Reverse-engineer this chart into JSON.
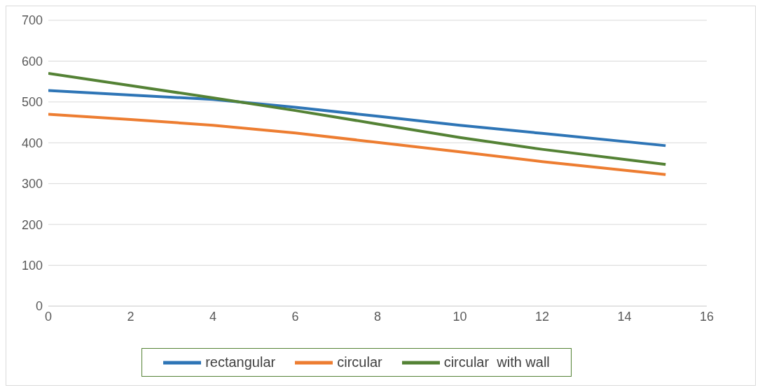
{
  "chart_data": {
    "type": "line",
    "x": [
      0,
      2,
      4,
      6,
      8,
      10,
      12,
      15
    ],
    "series": [
      {
        "name": "rectangular",
        "color": "#2e75b6",
        "values": [
          528,
          517,
          506,
          487,
          465,
          443,
          423,
          393
        ]
      },
      {
        "name": "circular",
        "color": "#ed7d31",
        "values": [
          470,
          457,
          443,
          424,
          401,
          378,
          354,
          322
        ]
      },
      {
        "name": "circular  with wall",
        "color": "#548235",
        "values": [
          570,
          540,
          510,
          479,
          446,
          413,
          384,
          347
        ]
      }
    ],
    "xlim": [
      0,
      16
    ],
    "xticks": [
      0,
      2,
      4,
      6,
      8,
      10,
      12,
      14,
      16
    ],
    "ylim": [
      0,
      700
    ],
    "yticks": [
      0,
      100,
      200,
      300,
      400,
      500,
      600,
      700
    ],
    "grid": "y",
    "legend": "bottom",
    "marker": "none",
    "line_style": "solid"
  }
}
